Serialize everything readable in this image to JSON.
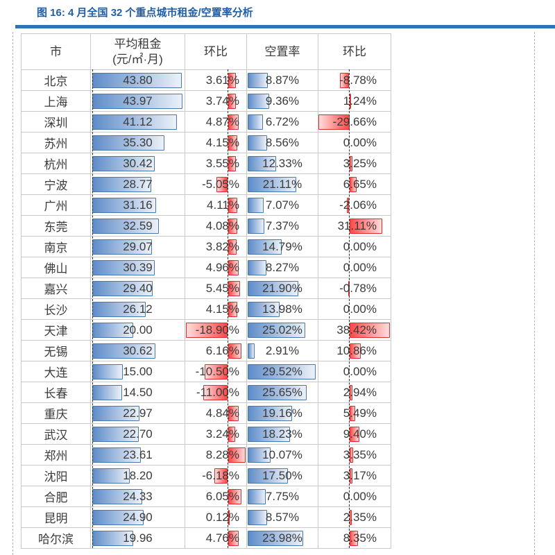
{
  "figure": {
    "title": "图 16: 4 月全国 32 个重点城市租金/空置率分析"
  },
  "table": {
    "headers": {
      "city": "市",
      "rent": "平均租金",
      "rent_unit": "(元/㎡·月)",
      "rent_mom": "环比",
      "vacancy": "空置率",
      "vacancy_mom": "环比"
    },
    "rows": [
      {
        "city": "北京",
        "rent": "43.80",
        "rent_mom": "3.61%",
        "vacancy": "8.87%",
        "vacancy_mom": "-8.78%"
      },
      {
        "city": "上海",
        "rent": "43.97",
        "rent_mom": "3.74%",
        "vacancy": "9.36%",
        "vacancy_mom": "1.24%"
      },
      {
        "city": "深圳",
        "rent": "41.12",
        "rent_mom": "4.87%",
        "vacancy": "6.72%",
        "vacancy_mom": "-29.66%"
      },
      {
        "city": "苏州",
        "rent": "35.30",
        "rent_mom": "4.15%",
        "vacancy": "8.56%",
        "vacancy_mom": "0.00%"
      },
      {
        "city": "杭州",
        "rent": "30.42",
        "rent_mom": "3.55%",
        "vacancy": "12.33%",
        "vacancy_mom": "3.25%"
      },
      {
        "city": "宁波",
        "rent": "28.77",
        "rent_mom": "-5.05%",
        "vacancy": "21.11%",
        "vacancy_mom": "6.65%"
      },
      {
        "city": "广州",
        "rent": "31.16",
        "rent_mom": "4.11%",
        "vacancy": "7.07%",
        "vacancy_mom": "-2.06%"
      },
      {
        "city": "东莞",
        "rent": "32.59",
        "rent_mom": "4.08%",
        "vacancy": "7.37%",
        "vacancy_mom": "31.11%"
      },
      {
        "city": "南京",
        "rent": "29.07",
        "rent_mom": "3.82%",
        "vacancy": "14.79%",
        "vacancy_mom": "0.00%"
      },
      {
        "city": "佛山",
        "rent": "30.39",
        "rent_mom": "4.96%",
        "vacancy": "8.27%",
        "vacancy_mom": "0.00%"
      },
      {
        "city": "嘉兴",
        "rent": "29.40",
        "rent_mom": "5.45%",
        "vacancy": "21.90%",
        "vacancy_mom": "-0.78%"
      },
      {
        "city": "长沙",
        "rent": "26.12",
        "rent_mom": "4.15%",
        "vacancy": "13.98%",
        "vacancy_mom": "0.00%"
      },
      {
        "city": "天津",
        "rent": "20.00",
        "rent_mom": "-18.90%",
        "vacancy": "25.02%",
        "vacancy_mom": "38.42%"
      },
      {
        "city": "无锡",
        "rent": "30.62",
        "rent_mom": "6.16%",
        "vacancy": "2.91%",
        "vacancy_mom": "10.86%"
      },
      {
        "city": "大连",
        "rent": "15.00",
        "rent_mom": "-10.50%",
        "vacancy": "29.52%",
        "vacancy_mom": "0.00%"
      },
      {
        "city": "长春",
        "rent": "14.50",
        "rent_mom": "-11.00%",
        "vacancy": "25.65%",
        "vacancy_mom": "2.94%"
      },
      {
        "city": "重庆",
        "rent": "22.97",
        "rent_mom": "4.84%",
        "vacancy": "19.16%",
        "vacancy_mom": "5.49%"
      },
      {
        "city": "武汉",
        "rent": "22.70",
        "rent_mom": "3.24%",
        "vacancy": "18.23%",
        "vacancy_mom": "9.40%"
      },
      {
        "city": "郑州",
        "rent": "23.61",
        "rent_mom": "8.28%",
        "vacancy": "10.07%",
        "vacancy_mom": "3.35%"
      },
      {
        "city": "沈阳",
        "rent": "18.20",
        "rent_mom": "-6.18%",
        "vacancy": "17.50%",
        "vacancy_mom": "3.17%"
      },
      {
        "city": "合肥",
        "rent": "24.33",
        "rent_mom": "6.05%",
        "vacancy": "7.75%",
        "vacancy_mom": "0.00%"
      },
      {
        "city": "昆明",
        "rent": "24.90",
        "rent_mom": "0.12%",
        "vacancy": "8.57%",
        "vacancy_mom": "2.35%"
      },
      {
        "city": "哈尔滨",
        "rent": "19.96",
        "rent_mom": "4.76%",
        "vacancy": "23.98%",
        "vacancy_mom": "8.35%"
      }
    ]
  },
  "chart_data": {
    "type": "table",
    "title": "图 16: 4 月全国 32 个重点城市租金/空置率分析",
    "columns": [
      "市",
      "平均租金(元/㎡·月)",
      "环比",
      "空置率",
      "环比"
    ],
    "categories": [
      "北京",
      "上海",
      "深圳",
      "苏州",
      "杭州",
      "宁波",
      "广州",
      "东莞",
      "南京",
      "佛山",
      "嘉兴",
      "长沙",
      "天津",
      "无锡",
      "大连",
      "长春",
      "重庆",
      "武汉",
      "郑州",
      "沈阳",
      "合肥",
      "昆明",
      "哈尔滨"
    ],
    "series": [
      {
        "name": "平均租金(元/㎡·月)",
        "values": [
          43.8,
          43.97,
          41.12,
          35.3,
          30.42,
          28.77,
          31.16,
          32.59,
          29.07,
          30.39,
          29.4,
          26.12,
          20.0,
          30.62,
          15.0,
          14.5,
          22.97,
          22.7,
          23.61,
          18.2,
          24.33,
          24.9,
          19.96
        ]
      },
      {
        "name": "租金环比(%)",
        "values": [
          3.61,
          3.74,
          4.87,
          4.15,
          3.55,
          -5.05,
          4.11,
          4.08,
          3.82,
          4.96,
          5.45,
          4.15,
          -18.9,
          6.16,
          -10.5,
          -11.0,
          4.84,
          3.24,
          8.28,
          -6.18,
          6.05,
          0.12,
          4.76
        ]
      },
      {
        "name": "空置率(%)",
        "values": [
          8.87,
          9.36,
          6.72,
          8.56,
          12.33,
          21.11,
          7.07,
          7.37,
          14.79,
          8.27,
          21.9,
          13.98,
          25.02,
          2.91,
          29.52,
          25.65,
          19.16,
          18.23,
          10.07,
          17.5,
          7.75,
          8.57,
          23.98
        ]
      },
      {
        "name": "空置率环比(%)",
        "values": [
          -8.78,
          1.24,
          -29.66,
          0.0,
          3.25,
          6.65,
          -2.06,
          31.11,
          0.0,
          0.0,
          -0.78,
          0.0,
          38.42,
          10.86,
          0.0,
          2.94,
          5.49,
          9.4,
          3.35,
          3.17,
          0.0,
          2.35,
          8.35
        ]
      }
    ],
    "notes": {
      "bar_colors": {
        "rent_and_vacancy_bars": "#5E8CC8",
        "mom_change_bars": "#FF4949"
      },
      "accent_blue": "#2E75B6",
      "title_blue": "#1F5FA8"
    }
  }
}
